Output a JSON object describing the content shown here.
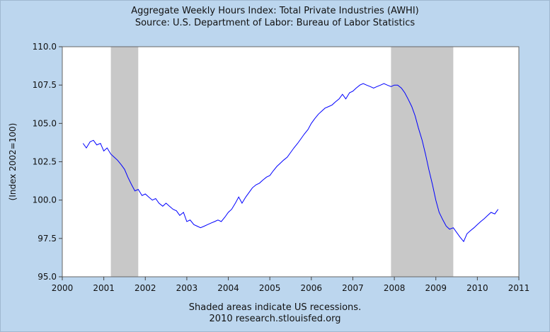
{
  "chart_data": {
    "type": "line",
    "title": "Aggregate Weekly Hours Index: Total Private Industries (AWHI)",
    "subtitle": "Source: U.S. Department of Labor: Bureau of Labor Statistics",
    "xlabel": "",
    "ylabel": "(Index 2002=100)",
    "footer_lines": [
      "Shaded areas indicate US recessions.",
      "2010 research.stlouisfed.org"
    ],
    "xlim": [
      2000,
      2011
    ],
    "ylim": [
      95,
      110
    ],
    "x_ticks": [
      "2000",
      "2001",
      "2002",
      "2003",
      "2004",
      "2005",
      "2006",
      "2007",
      "2008",
      "2009",
      "2010",
      "2011"
    ],
    "y_ticks": [
      "95.0",
      "97.5",
      "100.0",
      "102.5",
      "105.0",
      "107.5",
      "110.0"
    ],
    "grid": false,
    "line_color": "#0000ff",
    "recession_color": "#c8c8c8",
    "recessions": [
      [
        2001.17,
        2001.83
      ],
      [
        2007.92,
        2009.42
      ]
    ],
    "series": [
      {
        "x": [
          2000.5,
          2000.58,
          2000.67,
          2000.75,
          2000.83,
          2000.92,
          2001.0,
          2001.08,
          2001.17,
          2001.25,
          2001.33,
          2001.42,
          2001.5,
          2001.58,
          2001.67,
          2001.75,
          2001.83,
          2001.92,
          2002.0,
          2002.08,
          2002.17,
          2002.25,
          2002.33,
          2002.42,
          2002.5,
          2002.58,
          2002.67,
          2002.75,
          2002.83,
          2002.92,
          2003.0,
          2003.08,
          2003.17,
          2003.25,
          2003.33,
          2003.42,
          2003.5,
          2003.58,
          2003.67,
          2003.75,
          2003.83,
          2003.92,
          2004.0,
          2004.08,
          2004.17,
          2004.25,
          2004.33,
          2004.42,
          2004.5,
          2004.58,
          2004.67,
          2004.75,
          2004.83,
          2004.92,
          2005.0,
          2005.08,
          2005.17,
          2005.25,
          2005.33,
          2005.42,
          2005.5,
          2005.58,
          2005.67,
          2005.75,
          2005.83,
          2005.92,
          2006.0,
          2006.08,
          2006.17,
          2006.25,
          2006.33,
          2006.42,
          2006.5,
          2006.58,
          2006.67,
          2006.75,
          2006.83,
          2006.92,
          2007.0,
          2007.08,
          2007.17,
          2007.25,
          2007.33,
          2007.42,
          2007.5,
          2007.58,
          2007.67,
          2007.75,
          2007.83,
          2007.92,
          2008.0,
          2008.08,
          2008.17,
          2008.25,
          2008.33,
          2008.42,
          2008.5,
          2008.58,
          2008.67,
          2008.75,
          2008.83,
          2008.92,
          2009.0,
          2009.08,
          2009.17,
          2009.25,
          2009.33,
          2009.42,
          2009.5,
          2009.58,
          2009.67,
          2009.75,
          2009.83,
          2009.92,
          2010.0,
          2010.08,
          2010.17,
          2010.25,
          2010.33,
          2010.42,
          2010.5
        ],
        "y": [
          103.7,
          103.4,
          103.8,
          103.9,
          103.6,
          103.7,
          103.2,
          103.4,
          103.0,
          102.8,
          102.6,
          102.3,
          102.0,
          101.5,
          101.0,
          100.6,
          100.7,
          100.3,
          100.4,
          100.2,
          100.0,
          100.1,
          99.8,
          99.6,
          99.8,
          99.6,
          99.4,
          99.3,
          99.0,
          99.2,
          98.6,
          98.7,
          98.4,
          98.3,
          98.2,
          98.3,
          98.4,
          98.5,
          98.6,
          98.7,
          98.6,
          98.9,
          99.2,
          99.4,
          99.8,
          100.2,
          99.8,
          100.2,
          100.5,
          100.8,
          101.0,
          101.1,
          101.3,
          101.5,
          101.6,
          101.9,
          102.2,
          102.4,
          102.6,
          102.8,
          103.1,
          103.4,
          103.7,
          104.0,
          104.3,
          104.6,
          105.0,
          105.3,
          105.6,
          105.8,
          106.0,
          106.1,
          106.2,
          106.4,
          106.6,
          106.9,
          106.6,
          107.0,
          107.1,
          107.3,
          107.5,
          107.6,
          107.5,
          107.4,
          107.3,
          107.4,
          107.5,
          107.6,
          107.5,
          107.4,
          107.5,
          107.5,
          107.3,
          107.0,
          106.6,
          106.1,
          105.5,
          104.7,
          103.9,
          103.0,
          102.0,
          101.0,
          100.0,
          99.2,
          98.7,
          98.3,
          98.1,
          98.2,
          97.9,
          97.6,
          97.3,
          97.8,
          98.0,
          98.2,
          98.4,
          98.6,
          98.8,
          99.0,
          99.2,
          99.1,
          99.4
        ]
      }
    ]
  }
}
